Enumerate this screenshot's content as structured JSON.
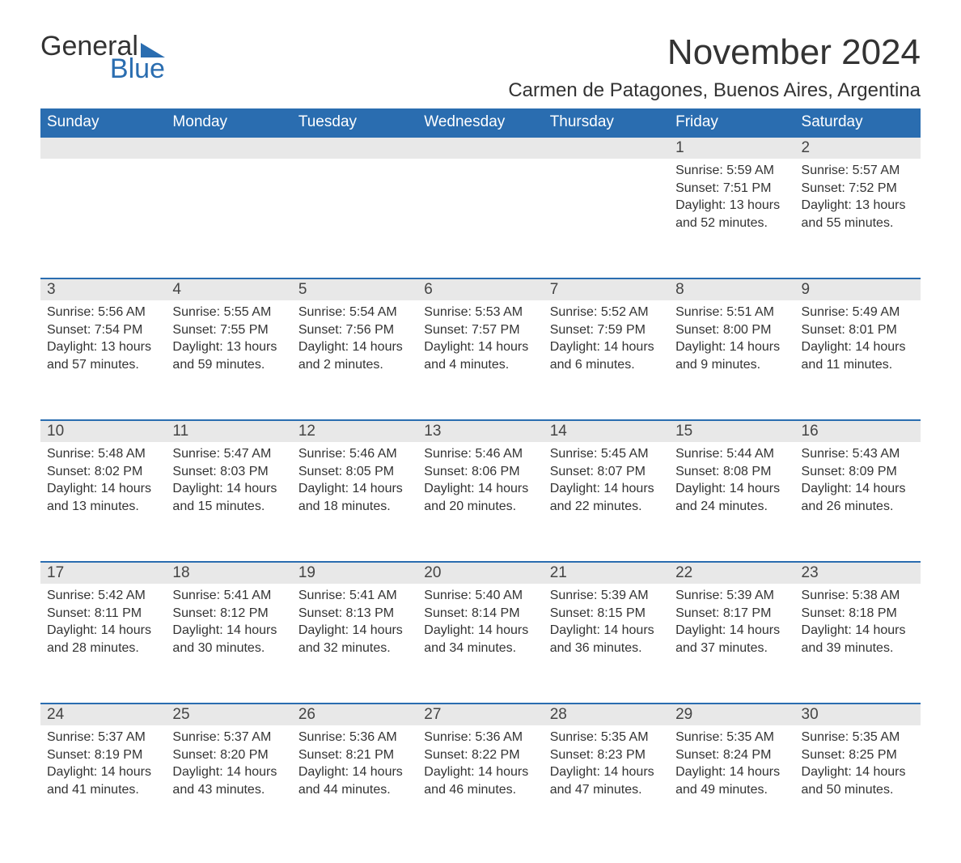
{
  "brand": {
    "word1": "General",
    "word2": "Blue"
  },
  "title": "November 2024",
  "location": "Carmen de Patagones, Buenos Aires, Argentina",
  "colors": {
    "header_bg": "#2a6db0",
    "header_text": "#ffffff",
    "daynum_bg": "#e8e8e8",
    "border": "#2a6db0",
    "text": "#333333",
    "background": "#ffffff"
  },
  "day_headers": [
    "Sunday",
    "Monday",
    "Tuesday",
    "Wednesday",
    "Thursday",
    "Friday",
    "Saturday"
  ],
  "weeks": [
    [
      null,
      null,
      null,
      null,
      null,
      {
        "n": "1",
        "sunrise": "5:59 AM",
        "sunset": "7:51 PM",
        "daylight": "13 hours and 52 minutes."
      },
      {
        "n": "2",
        "sunrise": "5:57 AM",
        "sunset": "7:52 PM",
        "daylight": "13 hours and 55 minutes."
      }
    ],
    [
      {
        "n": "3",
        "sunrise": "5:56 AM",
        "sunset": "7:54 PM",
        "daylight": "13 hours and 57 minutes."
      },
      {
        "n": "4",
        "sunrise": "5:55 AM",
        "sunset": "7:55 PM",
        "daylight": "13 hours and 59 minutes."
      },
      {
        "n": "5",
        "sunrise": "5:54 AM",
        "sunset": "7:56 PM",
        "daylight": "14 hours and 2 minutes."
      },
      {
        "n": "6",
        "sunrise": "5:53 AM",
        "sunset": "7:57 PM",
        "daylight": "14 hours and 4 minutes."
      },
      {
        "n": "7",
        "sunrise": "5:52 AM",
        "sunset": "7:59 PM",
        "daylight": "14 hours and 6 minutes."
      },
      {
        "n": "8",
        "sunrise": "5:51 AM",
        "sunset": "8:00 PM",
        "daylight": "14 hours and 9 minutes."
      },
      {
        "n": "9",
        "sunrise": "5:49 AM",
        "sunset": "8:01 PM",
        "daylight": "14 hours and 11 minutes."
      }
    ],
    [
      {
        "n": "10",
        "sunrise": "5:48 AM",
        "sunset": "8:02 PM",
        "daylight": "14 hours and 13 minutes."
      },
      {
        "n": "11",
        "sunrise": "5:47 AM",
        "sunset": "8:03 PM",
        "daylight": "14 hours and 15 minutes."
      },
      {
        "n": "12",
        "sunrise": "5:46 AM",
        "sunset": "8:05 PM",
        "daylight": "14 hours and 18 minutes."
      },
      {
        "n": "13",
        "sunrise": "5:46 AM",
        "sunset": "8:06 PM",
        "daylight": "14 hours and 20 minutes."
      },
      {
        "n": "14",
        "sunrise": "5:45 AM",
        "sunset": "8:07 PM",
        "daylight": "14 hours and 22 minutes."
      },
      {
        "n": "15",
        "sunrise": "5:44 AM",
        "sunset": "8:08 PM",
        "daylight": "14 hours and 24 minutes."
      },
      {
        "n": "16",
        "sunrise": "5:43 AM",
        "sunset": "8:09 PM",
        "daylight": "14 hours and 26 minutes."
      }
    ],
    [
      {
        "n": "17",
        "sunrise": "5:42 AM",
        "sunset": "8:11 PM",
        "daylight": "14 hours and 28 minutes."
      },
      {
        "n": "18",
        "sunrise": "5:41 AM",
        "sunset": "8:12 PM",
        "daylight": "14 hours and 30 minutes."
      },
      {
        "n": "19",
        "sunrise": "5:41 AM",
        "sunset": "8:13 PM",
        "daylight": "14 hours and 32 minutes."
      },
      {
        "n": "20",
        "sunrise": "5:40 AM",
        "sunset": "8:14 PM",
        "daylight": "14 hours and 34 minutes."
      },
      {
        "n": "21",
        "sunrise": "5:39 AM",
        "sunset": "8:15 PM",
        "daylight": "14 hours and 36 minutes."
      },
      {
        "n": "22",
        "sunrise": "5:39 AM",
        "sunset": "8:17 PM",
        "daylight": "14 hours and 37 minutes."
      },
      {
        "n": "23",
        "sunrise": "5:38 AM",
        "sunset": "8:18 PM",
        "daylight": "14 hours and 39 minutes."
      }
    ],
    [
      {
        "n": "24",
        "sunrise": "5:37 AM",
        "sunset": "8:19 PM",
        "daylight": "14 hours and 41 minutes."
      },
      {
        "n": "25",
        "sunrise": "5:37 AM",
        "sunset": "8:20 PM",
        "daylight": "14 hours and 43 minutes."
      },
      {
        "n": "26",
        "sunrise": "5:36 AM",
        "sunset": "8:21 PM",
        "daylight": "14 hours and 44 minutes."
      },
      {
        "n": "27",
        "sunrise": "5:36 AM",
        "sunset": "8:22 PM",
        "daylight": "14 hours and 46 minutes."
      },
      {
        "n": "28",
        "sunrise": "5:35 AM",
        "sunset": "8:23 PM",
        "daylight": "14 hours and 47 minutes."
      },
      {
        "n": "29",
        "sunrise": "5:35 AM",
        "sunset": "8:24 PM",
        "daylight": "14 hours and 49 minutes."
      },
      {
        "n": "30",
        "sunrise": "5:35 AM",
        "sunset": "8:25 PM",
        "daylight": "14 hours and 50 minutes."
      }
    ]
  ],
  "labels": {
    "sunrise": "Sunrise: ",
    "sunset": "Sunset: ",
    "daylight": "Daylight: "
  }
}
